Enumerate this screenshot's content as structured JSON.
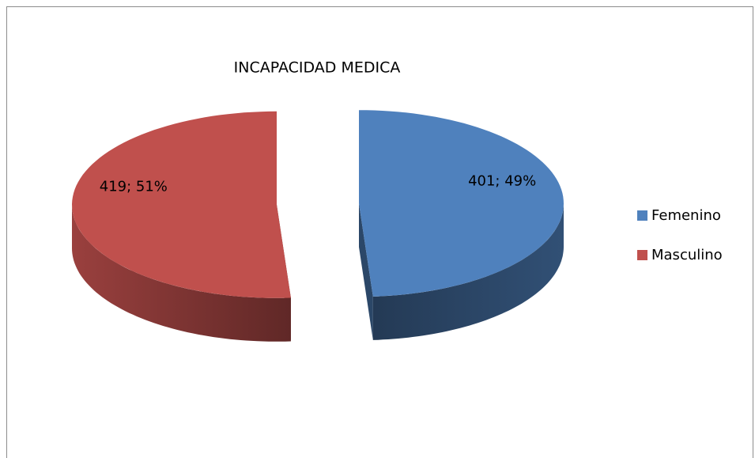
{
  "chart_data": {
    "type": "pie",
    "title": "INCAPACIDAD  MEDICA",
    "categories": [
      "Femenino",
      "Masculino"
    ],
    "values": [
      401,
      419
    ],
    "value_labels": [
      "401; 49%",
      "419; 51%"
    ],
    "colors": [
      "#4f81bd",
      "#c0504d"
    ],
    "legend": "right"
  }
}
